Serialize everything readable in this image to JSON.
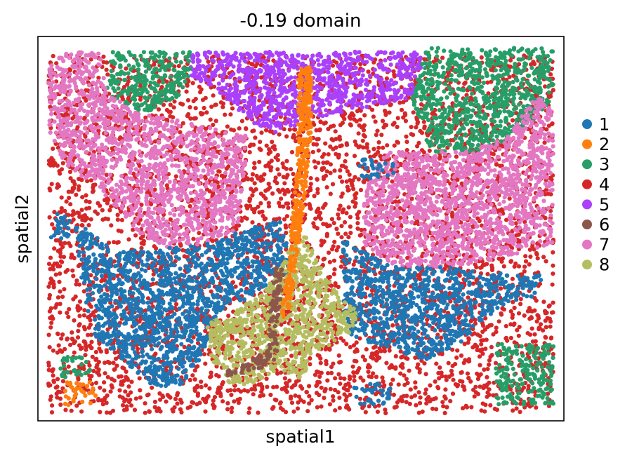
{
  "chart_data": {
    "type": "scatter",
    "title": "-0.19 domain",
    "xlabel": "spatial1",
    "ylabel": "spatial2",
    "xlim": [
      0,
      100
    ],
    "ylim": [
      0,
      100
    ],
    "grid": false,
    "legend_placement": "right",
    "colors": {
      "1": "#1f77b4",
      "2": "#ff7f0e",
      "3": "#279e68",
      "4": "#d62728",
      "5": "#aa40fc",
      "6": "#8c564b",
      "7": "#e377c2",
      "8": "#b5bd61"
    },
    "legend": [
      "1",
      "2",
      "3",
      "4",
      "5",
      "6",
      "7",
      "8"
    ],
    "regions": [
      {
        "cluster": "4",
        "polygon": [
          [
            2,
            95
          ],
          [
            98,
            95
          ],
          [
            98,
            2
          ],
          [
            2,
            2
          ]
        ],
        "density": 1.0
      },
      {
        "cluster": "5",
        "polygon": [
          [
            29,
            96
          ],
          [
            74,
            96
          ],
          [
            71,
            84
          ],
          [
            57,
            80
          ],
          [
            45,
            75
          ],
          [
            40,
            78
          ],
          [
            35,
            85
          ],
          [
            29,
            90
          ]
        ],
        "density": 2.6
      },
      {
        "cluster": "3",
        "polygon": [
          [
            14,
            96
          ],
          [
            29,
            96
          ],
          [
            29,
            90
          ],
          [
            26,
            83
          ],
          [
            20,
            80
          ],
          [
            13,
            85
          ]
        ],
        "density": 2.4
      },
      {
        "cluster": "3",
        "polygon": [
          [
            74,
            97
          ],
          [
            98,
            97
          ],
          [
            98,
            84
          ],
          [
            92,
            75
          ],
          [
            85,
            70
          ],
          [
            75,
            70
          ],
          [
            72,
            78
          ],
          [
            71,
            84
          ]
        ],
        "density": 2.4
      },
      {
        "cluster": "3",
        "polygon": [
          [
            87,
            20
          ],
          [
            98,
            20
          ],
          [
            98,
            4
          ],
          [
            87,
            4
          ]
        ],
        "density": 2.0
      },
      {
        "cluster": "3",
        "polygon": [
          [
            4,
            17
          ],
          [
            10,
            17
          ],
          [
            10,
            11
          ],
          [
            4,
            11
          ]
        ],
        "density": 1.5
      },
      {
        "cluster": "7",
        "polygon": [
          [
            5,
            96
          ],
          [
            12,
            96
          ],
          [
            13,
            85
          ],
          [
            20,
            80
          ],
          [
            27,
            78
          ],
          [
            40,
            74
          ],
          [
            38,
            50
          ],
          [
            32,
            46
          ],
          [
            25,
            45
          ],
          [
            20,
            48
          ],
          [
            12,
            60
          ],
          [
            5,
            67
          ],
          [
            2,
            75
          ],
          [
            2,
            92
          ]
        ],
        "density": 2.4
      },
      {
        "cluster": "7",
        "polygon": [
          [
            66,
            70
          ],
          [
            82,
            70
          ],
          [
            89,
            74
          ],
          [
            95,
            85
          ],
          [
            98,
            80
          ],
          [
            98,
            46
          ],
          [
            87,
            42
          ],
          [
            78,
            40
          ],
          [
            68,
            40
          ],
          [
            62,
            46
          ],
          [
            62,
            60
          ]
        ],
        "density": 2.6
      },
      {
        "cluster": "1",
        "polygon": [
          [
            7,
            52
          ],
          [
            15,
            44
          ],
          [
            25,
            45
          ],
          [
            32,
            46
          ],
          [
            40,
            50
          ],
          [
            46,
            52
          ],
          [
            49,
            40
          ],
          [
            40,
            32
          ],
          [
            34,
            28
          ],
          [
            31,
            16
          ],
          [
            27,
            9
          ],
          [
            21,
            9
          ],
          [
            17,
            15
          ],
          [
            11,
            22
          ],
          [
            9,
            30
          ],
          [
            8,
            40
          ]
        ],
        "density": 2.6
      },
      {
        "cluster": "1",
        "polygon": [
          [
            2,
            54
          ],
          [
            6,
            54
          ],
          [
            6,
            47
          ],
          [
            2,
            47
          ]
        ],
        "density": 2.0
      },
      {
        "cluster": "1",
        "polygon": [
          [
            58,
            47
          ],
          [
            68,
            40
          ],
          [
            78,
            40
          ],
          [
            90,
            38
          ],
          [
            96,
            38
          ],
          [
            96,
            33
          ],
          [
            88,
            30
          ],
          [
            85,
            26
          ],
          [
            80,
            20
          ],
          [
            74,
            16
          ],
          [
            66,
            19
          ],
          [
            59,
            22
          ],
          [
            58,
            30
          ]
        ],
        "density": 2.6
      },
      {
        "cluster": "1",
        "polygon": [
          [
            60,
            10
          ],
          [
            67,
            10
          ],
          [
            67,
            4
          ],
          [
            60,
            4
          ]
        ],
        "density": 1.6
      },
      {
        "cluster": "1",
        "polygon": [
          [
            61,
            68
          ],
          [
            68,
            68
          ],
          [
            68,
            63
          ],
          [
            61,
            63
          ]
        ],
        "density": 1.5
      },
      {
        "cluster": "8",
        "polygon": [
          [
            32,
            25
          ],
          [
            42,
            32
          ],
          [
            47,
            42
          ],
          [
            49,
            48
          ],
          [
            51,
            48
          ],
          [
            53,
            42
          ],
          [
            56,
            35
          ],
          [
            61,
            28
          ],
          [
            59,
            22
          ],
          [
            53,
            18
          ],
          [
            50,
            11
          ],
          [
            47,
            12
          ],
          [
            44,
            12
          ],
          [
            40,
            9
          ],
          [
            36,
            10
          ],
          [
            33,
            16
          ]
        ],
        "density": 2.8
      },
      {
        "cluster": "2",
        "polygon": [
          [
            49.5,
            92
          ],
          [
            52,
            92
          ],
          [
            52,
            75
          ],
          [
            51,
            60
          ],
          [
            50,
            50
          ],
          [
            49,
            40
          ],
          [
            48,
            30
          ],
          [
            47,
            27
          ],
          [
            46,
            27
          ],
          [
            47,
            35
          ],
          [
            48,
            48
          ],
          [
            49,
            62
          ],
          [
            49.5,
            75
          ]
        ],
        "density": 5.0
      },
      {
        "cluster": "2",
        "polygon": [
          [
            5,
            10
          ],
          [
            11,
            10
          ],
          [
            11,
            4
          ],
          [
            5,
            4
          ]
        ],
        "density": 1.6
      },
      {
        "cluster": "6",
        "polygon": [
          [
            45,
            40
          ],
          [
            47,
            40
          ],
          [
            46,
            30
          ],
          [
            45,
            22
          ],
          [
            46,
            18
          ],
          [
            45,
            16
          ],
          [
            43,
            14
          ],
          [
            40,
            13
          ],
          [
            36,
            11
          ],
          [
            36,
            13
          ],
          [
            40,
            15
          ],
          [
            44,
            19
          ],
          [
            44,
            27
          ]
        ],
        "density": 4.0
      }
    ]
  }
}
